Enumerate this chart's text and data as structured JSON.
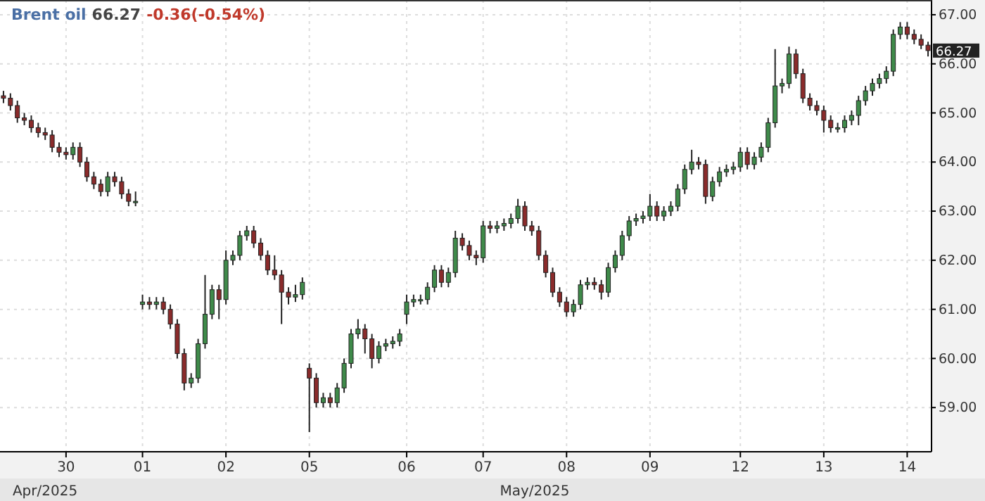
{
  "chart_data": {
    "type": "candlestick",
    "title": "Brent oil",
    "subtitle": "66.27 -0.36(-0.54%)",
    "categories": [
      null,
      null,
      null,
      null,
      null,
      null,
      null,
      null,
      null,
      "30",
      null,
      null,
      null,
      null,
      null,
      null,
      null,
      null,
      null,
      null,
      "01",
      null,
      null,
      null,
      null,
      null,
      null,
      null,
      null,
      null,
      null,
      null,
      "02",
      null,
      null,
      null,
      null,
      null,
      null,
      null,
      null,
      null,
      null,
      null,
      "05",
      null,
      null,
      null,
      null,
      null,
      null,
      null,
      null,
      null,
      null,
      null,
      null,
      null,
      "06",
      null,
      null,
      null,
      null,
      null,
      null,
      null,
      null,
      null,
      null,
      "07",
      null,
      null,
      null,
      null,
      null,
      null,
      null,
      null,
      null,
      null,
      null,
      "08",
      null,
      null,
      null,
      null,
      null,
      null,
      null,
      null,
      null,
      null,
      null,
      "09",
      null,
      null,
      null,
      null,
      null,
      null,
      null,
      null,
      null,
      null,
      null,
      null,
      "12",
      null,
      null,
      null,
      null,
      null,
      null,
      null,
      null,
      null,
      null,
      null,
      "13",
      null,
      null,
      null,
      null,
      null,
      null,
      null,
      null,
      null,
      null,
      null,
      "14",
      null,
      null,
      null
    ],
    "ohlc": [
      [
        65.35,
        65.45,
        65.2,
        65.3
      ],
      [
        65.3,
        65.4,
        65.05,
        65.15
      ],
      [
        65.15,
        65.25,
        64.8,
        64.9
      ],
      [
        64.9,
        65.0,
        64.75,
        64.85
      ],
      [
        64.85,
        64.95,
        64.6,
        64.7
      ],
      [
        64.7,
        64.8,
        64.5,
        64.6
      ],
      [
        64.6,
        64.7,
        64.45,
        64.55
      ],
      [
        64.55,
        64.65,
        64.2,
        64.3
      ],
      [
        64.3,
        64.4,
        64.1,
        64.2
      ],
      [
        64.2,
        64.3,
        64.05,
        64.15
      ],
      [
        64.15,
        64.4,
        64.05,
        64.3
      ],
      [
        64.3,
        64.4,
        63.9,
        64.0
      ],
      [
        64.0,
        64.1,
        63.6,
        63.7
      ],
      [
        63.7,
        63.8,
        63.45,
        63.55
      ],
      [
        63.55,
        63.65,
        63.3,
        63.4
      ],
      [
        63.4,
        63.8,
        63.3,
        63.7
      ],
      [
        63.7,
        63.8,
        63.5,
        63.6
      ],
      [
        63.6,
        63.7,
        63.25,
        63.35
      ],
      [
        63.35,
        63.45,
        63.1,
        63.2
      ],
      [
        63.2,
        63.4,
        63.1,
        63.2
      ],
      [
        61.1,
        61.3,
        61.0,
        61.15
      ],
      [
        61.15,
        61.25,
        61.0,
        61.1
      ],
      [
        61.1,
        61.25,
        61.0,
        61.15
      ],
      [
        61.15,
        61.25,
        60.9,
        61.0
      ],
      [
        61.0,
        61.1,
        60.6,
        60.7
      ],
      [
        60.7,
        60.8,
        60.0,
        60.1
      ],
      [
        60.1,
        60.2,
        59.35,
        59.5
      ],
      [
        59.5,
        59.7,
        59.4,
        59.6
      ],
      [
        59.6,
        60.4,
        59.5,
        60.3
      ],
      [
        60.3,
        61.7,
        60.2,
        60.9
      ],
      [
        60.9,
        61.5,
        60.8,
        61.4
      ],
      [
        61.4,
        61.5,
        60.8,
        61.2
      ],
      [
        61.2,
        62.2,
        61.1,
        62.0
      ],
      [
        62.0,
        62.2,
        61.9,
        62.1
      ],
      [
        62.1,
        62.6,
        62.0,
        62.5
      ],
      [
        62.5,
        62.7,
        62.4,
        62.6
      ],
      [
        62.6,
        62.7,
        62.25,
        62.35
      ],
      [
        62.35,
        62.45,
        62.0,
        62.1
      ],
      [
        62.1,
        62.2,
        61.7,
        61.8
      ],
      [
        61.8,
        62.1,
        61.6,
        61.7
      ],
      [
        61.7,
        61.8,
        60.7,
        61.35
      ],
      [
        61.35,
        61.45,
        61.1,
        61.25
      ],
      [
        61.25,
        61.5,
        61.15,
        61.3
      ],
      [
        61.3,
        61.65,
        61.2,
        61.55
      ],
      [
        59.8,
        59.9,
        58.5,
        59.6
      ],
      [
        59.6,
        59.7,
        59.0,
        59.1
      ],
      [
        59.1,
        59.3,
        59.0,
        59.2
      ],
      [
        59.2,
        59.3,
        59.0,
        59.1
      ],
      [
        59.1,
        59.5,
        59.0,
        59.4
      ],
      [
        59.4,
        60.0,
        59.3,
        59.9
      ],
      [
        59.9,
        60.6,
        59.8,
        60.5
      ],
      [
        60.5,
        60.8,
        60.4,
        60.6
      ],
      [
        60.6,
        60.7,
        60.1,
        60.4
      ],
      [
        60.4,
        60.5,
        59.8,
        60.0
      ],
      [
        60.0,
        60.35,
        59.9,
        60.25
      ],
      [
        60.25,
        60.4,
        60.15,
        60.3
      ],
      [
        60.3,
        60.45,
        60.2,
        60.35
      ],
      [
        60.35,
        60.6,
        60.25,
        60.5
      ],
      [
        60.9,
        61.3,
        60.7,
        61.15
      ],
      [
        61.15,
        61.3,
        61.05,
        61.2
      ],
      [
        61.2,
        61.3,
        61.1,
        61.2
      ],
      [
        61.2,
        61.55,
        61.1,
        61.45
      ],
      [
        61.45,
        61.9,
        61.35,
        61.8
      ],
      [
        61.8,
        61.9,
        61.45,
        61.55
      ],
      [
        61.55,
        61.85,
        61.45,
        61.75
      ],
      [
        61.75,
        62.6,
        61.65,
        62.45
      ],
      [
        62.45,
        62.55,
        62.2,
        62.3
      ],
      [
        62.3,
        62.4,
        62.0,
        62.1
      ],
      [
        62.1,
        62.2,
        61.9,
        62.05
      ],
      [
        62.05,
        62.8,
        61.95,
        62.7
      ],
      [
        62.7,
        62.8,
        62.55,
        62.65
      ],
      [
        62.65,
        62.8,
        62.55,
        62.7
      ],
      [
        62.7,
        62.85,
        62.6,
        62.75
      ],
      [
        62.75,
        62.95,
        62.65,
        62.85
      ],
      [
        62.85,
        63.25,
        62.75,
        63.1
      ],
      [
        63.1,
        63.2,
        62.6,
        62.7
      ],
      [
        62.7,
        62.8,
        62.5,
        62.6
      ],
      [
        62.6,
        62.7,
        62.0,
        62.1
      ],
      [
        62.1,
        62.2,
        61.65,
        61.75
      ],
      [
        61.75,
        61.85,
        61.25,
        61.35
      ],
      [
        61.35,
        61.45,
        61.05,
        61.15
      ],
      [
        61.15,
        61.25,
        60.85,
        60.95
      ],
      [
        60.95,
        61.2,
        60.85,
        61.1
      ],
      [
        61.1,
        61.6,
        61.0,
        61.5
      ],
      [
        61.5,
        61.65,
        61.4,
        61.55
      ],
      [
        61.55,
        61.65,
        61.4,
        61.5
      ],
      [
        61.5,
        61.6,
        61.2,
        61.35
      ],
      [
        61.35,
        61.95,
        61.25,
        61.85
      ],
      [
        61.85,
        62.2,
        61.75,
        62.1
      ],
      [
        62.1,
        62.6,
        62.0,
        62.5
      ],
      [
        62.5,
        62.9,
        62.4,
        62.8
      ],
      [
        62.8,
        62.95,
        62.7,
        62.85
      ],
      [
        62.85,
        63.0,
        62.75,
        62.9
      ],
      [
        62.9,
        63.35,
        62.8,
        63.1
      ],
      [
        63.1,
        63.2,
        62.8,
        62.9
      ],
      [
        62.9,
        63.1,
        62.8,
        63.0
      ],
      [
        63.0,
        63.2,
        62.9,
        63.1
      ],
      [
        63.1,
        63.55,
        63.0,
        63.45
      ],
      [
        63.45,
        63.95,
        63.35,
        63.85
      ],
      [
        63.85,
        64.25,
        63.75,
        64.0
      ],
      [
        64.0,
        64.1,
        63.85,
        63.95
      ],
      [
        63.95,
        64.05,
        63.15,
        63.3
      ],
      [
        63.3,
        63.7,
        63.2,
        63.6
      ],
      [
        63.6,
        63.9,
        63.5,
        63.8
      ],
      [
        63.8,
        63.95,
        63.7,
        63.85
      ],
      [
        63.85,
        64.0,
        63.75,
        63.9
      ],
      [
        63.9,
        64.3,
        63.8,
        64.2
      ],
      [
        64.2,
        64.3,
        63.85,
        63.95
      ],
      [
        63.95,
        64.2,
        63.85,
        64.1
      ],
      [
        64.1,
        64.4,
        64.0,
        64.3
      ],
      [
        64.3,
        64.9,
        64.2,
        64.8
      ],
      [
        64.8,
        66.3,
        64.7,
        65.55
      ],
      [
        65.55,
        65.7,
        65.4,
        65.6
      ],
      [
        65.6,
        66.35,
        65.5,
        66.2
      ],
      [
        66.2,
        66.3,
        65.7,
        65.8
      ],
      [
        65.8,
        65.9,
        65.2,
        65.3
      ],
      [
        65.3,
        65.4,
        65.05,
        65.15
      ],
      [
        65.15,
        65.25,
        64.95,
        65.05
      ],
      [
        65.05,
        65.15,
        64.6,
        64.85
      ],
      [
        64.85,
        64.95,
        64.6,
        64.7
      ],
      [
        64.7,
        64.8,
        64.6,
        64.7
      ],
      [
        64.7,
        64.95,
        64.6,
        64.85
      ],
      [
        64.85,
        65.05,
        64.75,
        64.95
      ],
      [
        64.95,
        65.35,
        64.75,
        65.25
      ],
      [
        65.25,
        65.55,
        65.15,
        65.45
      ],
      [
        65.45,
        65.7,
        65.35,
        65.6
      ],
      [
        65.6,
        65.8,
        65.5,
        65.7
      ],
      [
        65.7,
        65.95,
        65.6,
        65.85
      ],
      [
        65.85,
        66.7,
        65.75,
        66.6
      ],
      [
        66.6,
        66.85,
        66.5,
        66.75
      ],
      [
        66.75,
        66.85,
        66.5,
        66.6
      ],
      [
        66.6,
        66.7,
        66.4,
        66.5
      ],
      [
        66.5,
        66.6,
        66.3,
        66.38
      ],
      [
        66.38,
        66.45,
        66.15,
        66.27
      ]
    ],
    "ylim": [
      58.1,
      67.3
    ],
    "yticks": [
      {
        "value": 59,
        "label": "59.00"
      },
      {
        "value": 60,
        "label": "60.00"
      },
      {
        "value": 61,
        "label": "61.00"
      },
      {
        "value": 62,
        "label": "62.00"
      },
      {
        "value": 63,
        "label": "63.00"
      },
      {
        "value": 64,
        "label": "64.00"
      },
      {
        "value": 65,
        "label": "65.00"
      },
      {
        "value": 66,
        "label": "66.00"
      },
      {
        "value": 67,
        "label": "67.00"
      }
    ],
    "grid": true,
    "annotations": [
      {
        "text": "66.27",
        "y": 66.27
      },
      "Apr/2025",
      "May/2025"
    ]
  }
}
